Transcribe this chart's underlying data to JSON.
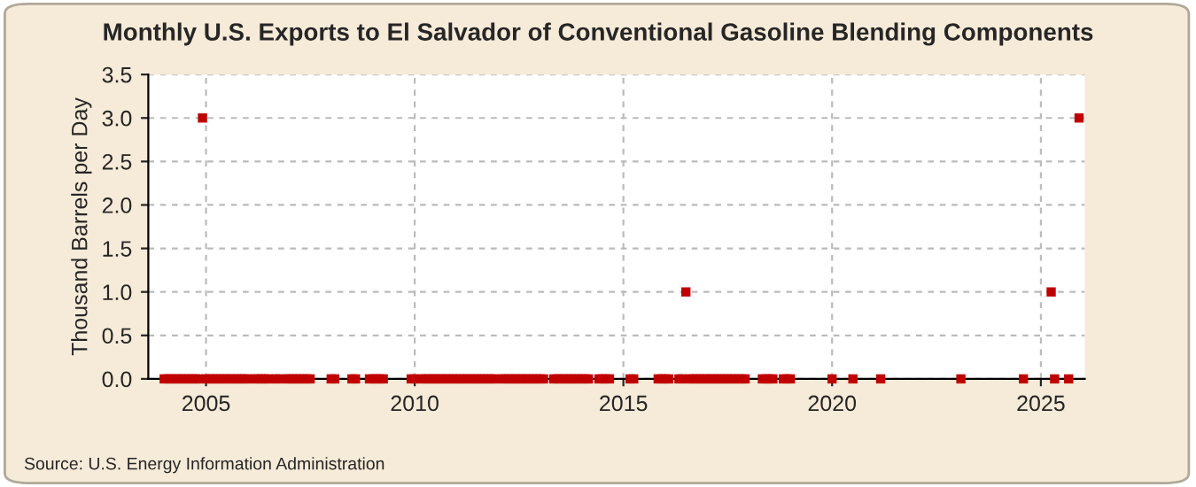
{
  "chart_data": {
    "type": "scatter",
    "title": "Monthly U.S. Exports to El Salvador of Conventional Gasoline Blending Components",
    "ylabel": "Thousand Barrels per Day",
    "annotations": [
      "Source: U.S. Energy Information Administration"
    ],
    "xlim": [
      "2003-08-15",
      "2026-01-20"
    ],
    "xticks": [
      "2005",
      "2010",
      "2015",
      "2020",
      "2025"
    ],
    "ylim": [
      0,
      3.5
    ],
    "yticks": [
      {
        "value": 0,
        "label": "0.0"
      },
      0.5,
      {
        "value": 1,
        "label": "1.0"
      },
      1.5,
      {
        "value": 2,
        "label": "2.0"
      },
      2.5,
      {
        "value": 3,
        "label": "3.0"
      },
      3.5
    ],
    "grid": true,
    "marker": "square",
    "legend": false,
    "series": [
      {
        "color": "#c00000",
        "x": [
          "2004-01",
          "2004-02",
          "2004-03",
          "2004-04",
          "2004-05",
          "2004-06",
          "2004-07",
          "2004-08",
          "2004-09",
          "2004-10",
          "2004-11",
          "2004-12",
          "2005-01",
          "2005-02",
          "2005-03",
          "2005-04",
          "2005-05",
          "2005-06",
          "2005-07",
          "2005-08",
          "2005-09",
          "2005-10",
          "2005-11",
          "2005-12",
          "2006-01",
          "2006-03",
          "2006-04",
          "2006-05",
          "2006-06",
          "2006-07",
          "2006-09",
          "2006-10",
          "2006-12",
          "2007-01",
          "2007-02",
          "2007-03",
          "2007-04",
          "2007-05",
          "2007-06",
          "2007-07",
          "2008-01",
          "2008-02",
          "2008-07",
          "2008-08",
          "2008-12",
          "2009-01",
          "2009-02",
          "2009-03",
          "2009-04",
          "2009-12",
          "2010-01",
          "2010-03",
          "2010-04",
          "2010-05",
          "2010-06",
          "2010-07",
          "2010-08",
          "2010-09",
          "2010-10",
          "2010-11",
          "2010-12",
          "2011-01",
          "2011-02",
          "2011-03",
          "2011-04",
          "2011-05",
          "2011-06",
          "2011-07",
          "2011-08",
          "2011-09",
          "2011-10",
          "2011-11",
          "2011-12",
          "2012-02",
          "2012-03",
          "2012-04",
          "2012-05",
          "2012-06",
          "2012-07",
          "2012-08",
          "2012-09",
          "2012-10",
          "2012-11",
          "2012-12",
          "2013-01",
          "2013-02",
          "2013-05",
          "2013-06",
          "2013-07",
          "2013-08",
          "2013-09",
          "2013-10",
          "2013-11",
          "2013-12",
          "2014-01",
          "2014-02",
          "2014-03",
          "2014-06",
          "2014-07",
          "2014-08",
          "2014-09",
          "2015-03",
          "2015-04",
          "2015-11",
          "2015-12",
          "2016-01",
          "2016-02",
          "2016-05",
          "2016-06",
          "2016-07",
          "2016-08",
          "2016-09",
          "2016-10",
          "2016-11",
          "2016-12",
          "2017-01",
          "2017-02",
          "2017-03",
          "2017-04",
          "2017-05",
          "2017-06",
          "2017-07",
          "2017-08",
          "2017-09",
          "2017-10",
          "2017-11",
          "2017-12",
          "2018-05",
          "2018-06",
          "2018-07",
          "2018-08",
          "2018-11",
          "2018-12",
          "2019-01",
          "2020-01",
          "2020-07",
          "2021-03",
          "2023-02",
          "2024-08",
          "2025-04",
          "2025-05",
          "2025-09",
          "2025-12"
        ],
        "values": [
          0,
          0,
          0,
          0,
          0,
          0,
          0,
          0,
          0,
          0,
          0,
          3,
          0,
          0,
          0,
          0,
          0,
          0,
          0,
          0,
          0,
          0,
          0,
          0,
          0,
          0,
          0,
          0,
          0,
          0,
          0,
          0,
          0,
          0,
          0,
          0,
          0,
          0,
          0,
          0,
          0,
          0,
          0,
          0,
          0,
          0,
          0,
          0,
          0,
          0,
          0,
          0,
          0,
          0,
          0,
          0,
          0,
          0,
          0,
          0,
          0,
          0,
          0,
          0,
          0,
          0,
          0,
          0,
          0,
          0,
          0,
          0,
          0,
          0,
          0,
          0,
          0,
          0,
          0,
          0,
          0,
          0,
          0,
          0,
          0,
          0,
          0,
          0,
          0,
          0,
          0,
          0,
          0,
          0,
          0,
          0,
          0,
          0,
          0,
          0,
          0,
          0,
          0,
          0,
          0,
          0,
          0,
          0,
          0,
          1,
          0,
          0,
          0,
          0,
          0,
          0,
          0,
          0,
          0,
          0,
          0,
          0,
          0,
          0,
          0,
          0,
          0,
          0,
          0,
          0,
          0,
          0,
          0,
          0,
          0,
          0,
          0,
          0,
          0,
          1,
          0,
          0,
          3
        ]
      }
    ]
  }
}
